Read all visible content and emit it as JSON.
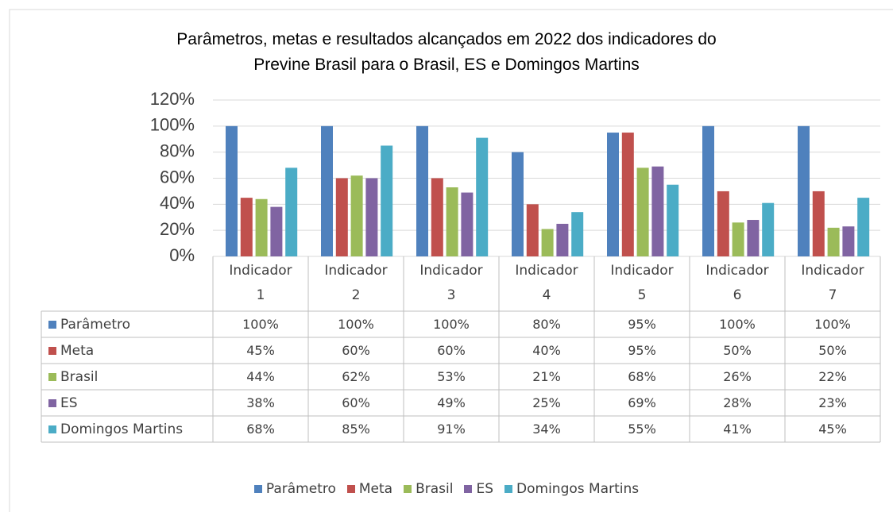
{
  "chart_data": {
    "type": "bar",
    "title": "Parâmetros, metas e resultados alcançados em 2022 dos indicadores do Previne Brasil para o Brasil, ES e Domingos Martins",
    "categories": [
      "Indicador 1",
      "Indicador 2",
      "Indicador 3",
      "Indicador 4",
      "Indicador 5",
      "Indicador 6",
      "Indicador 7"
    ],
    "series": [
      {
        "name": "Parâmetro",
        "color": "#4f81bd",
        "values": [
          100,
          100,
          100,
          80,
          95,
          100,
          100
        ],
        "value_labels": [
          "100%",
          "100%",
          "100%",
          "80%",
          "95%",
          "100%",
          "100%"
        ]
      },
      {
        "name": "Meta",
        "color": "#c0504d",
        "values": [
          45,
          60,
          60,
          40,
          95,
          50,
          50
        ],
        "value_labels": [
          "45%",
          "60%",
          "60%",
          "40%",
          "95%",
          "50%",
          "50%"
        ]
      },
      {
        "name": "Brasil",
        "color": "#9bbb59",
        "values": [
          44,
          62,
          53,
          21,
          68,
          26,
          22
        ],
        "value_labels": [
          "44%",
          "62%",
          "53%",
          "21%",
          "68%",
          "26%",
          "22%"
        ]
      },
      {
        "name": "ES",
        "color": "#8064a2",
        "values": [
          38,
          60,
          49,
          25,
          69,
          28,
          23
        ],
        "value_labels": [
          "38%",
          "60%",
          "49%",
          "25%",
          "69%",
          "28%",
          "23%"
        ]
      },
      {
        "name": "Domingos Martins",
        "color": "#4bacc6",
        "values": [
          68,
          85,
          91,
          34,
          55,
          41,
          45
        ],
        "value_labels": [
          "68%",
          "85%",
          "91%",
          "34%",
          "55%",
          "41%",
          "45%"
        ]
      }
    ],
    "ylim": [
      0,
      120
    ],
    "yticks": [
      {
        "value": 0,
        "label": "0%"
      },
      {
        "value": 20,
        "label": "20%"
      },
      {
        "value": 40,
        "label": "40%"
      },
      {
        "value": 60,
        "label": "60%"
      },
      {
        "value": 80,
        "label": "80%"
      },
      {
        "value": 100,
        "label": "100%"
      },
      {
        "value": 120,
        "label": "120%"
      }
    ],
    "grid": true,
    "legend": "bottom"
  }
}
